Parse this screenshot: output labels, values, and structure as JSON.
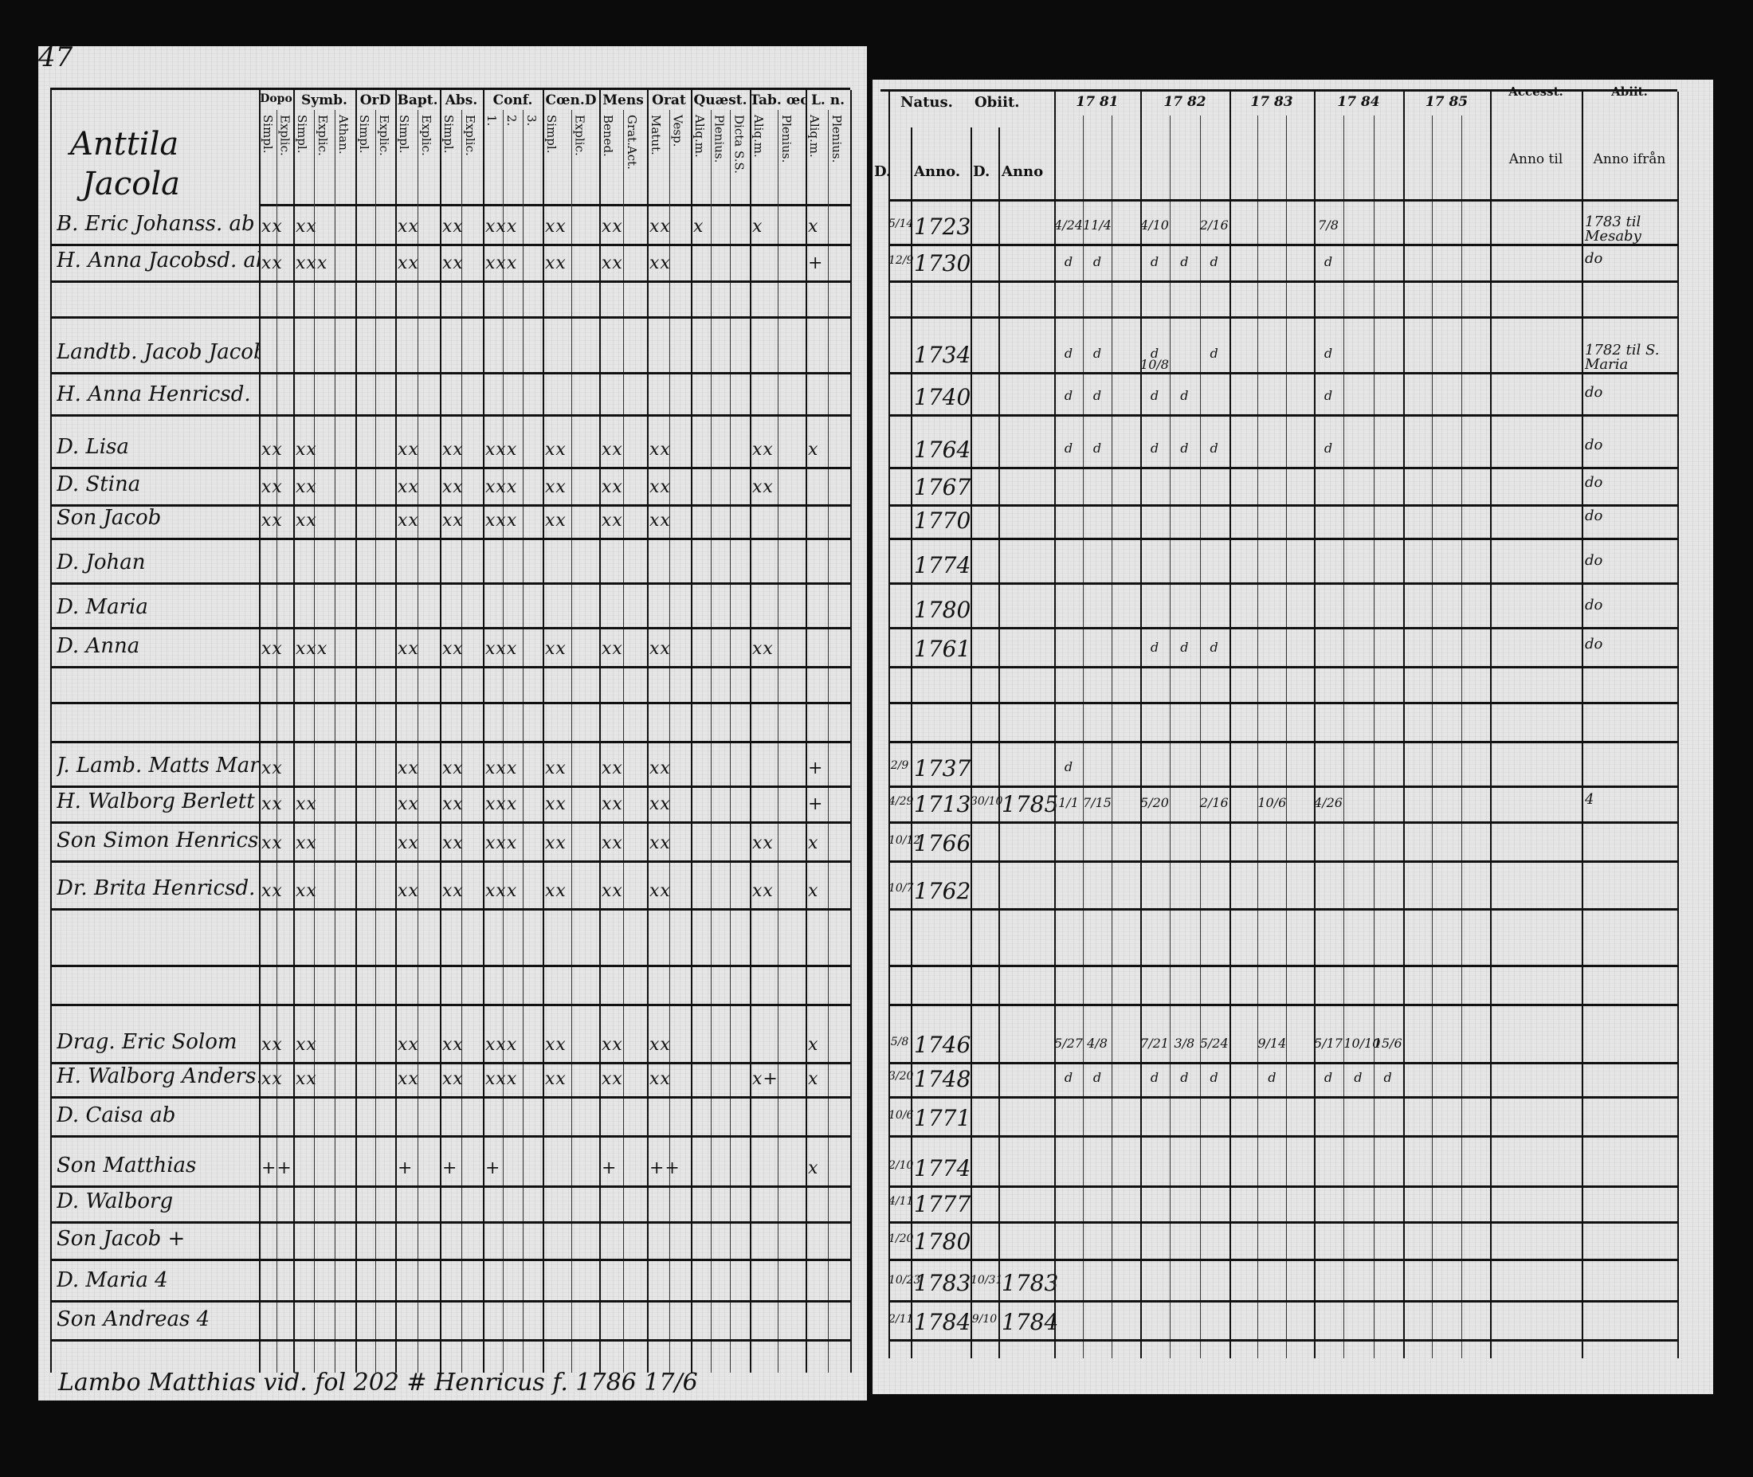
{
  "left_page": {
    "page_number": "47",
    "village": [
      "Anttila",
      "Jacola"
    ],
    "column_groups": [
      {
        "label": "Dopo",
        "subs": [
          "Simpl.",
          "Explic."
        ]
      },
      {
        "label": "Symb.",
        "subs": [
          "Simpl.",
          "Explic.",
          "Athan."
        ]
      },
      {
        "label": "OrD",
        "subs": [
          "Simpl.",
          "Explic."
        ]
      },
      {
        "label": "Bapt.",
        "subs": [
          "Simpl.",
          "Explic."
        ]
      },
      {
        "label": "Abs.",
        "subs": [
          "Simpl.",
          "Explic."
        ]
      },
      {
        "label": "Conf.",
        "subs": [
          "1.",
          "2.",
          "3."
        ]
      },
      {
        "label": "Cœn.D",
        "subs": [
          "Simpl.",
          "Explic."
        ]
      },
      {
        "label": "Mens",
        "subs": [
          "Bened.",
          "Grat.Act."
        ]
      },
      {
        "label": "Orat",
        "subs": [
          "Matut.",
          "Vesp."
        ]
      },
      {
        "label": "Quæst.",
        "subs": [
          "Aliq.m.",
          "Plenius.",
          "Dicta S.S."
        ]
      },
      {
        "label": "Tab. œc.",
        "subs": [
          "Aliq.m.",
          "Plenius."
        ]
      },
      {
        "label": "L. n.",
        "subs": [
          "Aliq.m.",
          "Plenius."
        ]
      }
    ],
    "footer_note": "Lambo Matthias vid. fol 202 # Henricus f. 1786 17/6"
  },
  "right_page": {
    "natus": {
      "label": "Natus.",
      "d": "D.",
      "anno": "Anno."
    },
    "obiit": {
      "label": "Obiit.",
      "d": "D.",
      "anno": "Anno"
    },
    "years": [
      "17 81",
      "17 82",
      "17 83",
      "17 84",
      "17 85"
    ],
    "accessit": {
      "label": "Accesst.",
      "sub": "Anno til"
    },
    "abiit": {
      "label": "Abiit.",
      "sub": "Anno ifrån"
    }
  },
  "rows": [
    {
      "name": "B. Eric Johanss. ab",
      "marks": [
        "xx",
        "xx",
        "",
        "xx",
        "xx",
        "xxx",
        "xx",
        "xx",
        "xx",
        "x",
        "x",
        "x"
      ],
      "natus_d": "5/14",
      "natus_anno": "1723",
      "years": [
        "4/24",
        "11/4",
        "",
        "4/10",
        "",
        "2/16",
        "",
        "",
        "",
        "7/8",
        "",
        ""
      ],
      "accessit": "",
      "abiit": "1783 til Mesaby"
    },
    {
      "name": "H. Anna Jacobsd. ab",
      "marks": [
        "xx",
        "xxx",
        "",
        "xx",
        "xx",
        "xxx",
        "xx",
        "xx",
        "xx",
        "",
        "",
        "+"
      ],
      "natus_d": "12/9",
      "natus_anno": "1730",
      "years": [
        "d",
        "d",
        "",
        "d",
        "d",
        "d",
        "",
        "",
        "",
        "d",
        "",
        ""
      ],
      "accessit": "",
      "abiit": "do"
    },
    {
      "name": "",
      "marks": [],
      "natus_d": "",
      "natus_anno": "",
      "years": [],
      "accessit": "",
      "abiit": ""
    },
    {
      "name": "Landtb. Jacob Jacobss.",
      "marks": [],
      "natus_d": "",
      "natus_anno": "1734",
      "years": [
        "d",
        "d",
        "",
        "d 10/8",
        "",
        "d",
        "",
        "",
        "",
        "d",
        "",
        ""
      ],
      "accessit": "",
      "abiit": "1782 til S. Maria"
    },
    {
      "name": "H. Anna Henricsd.",
      "marks": [],
      "natus_d": "",
      "natus_anno": "1740",
      "years": [
        "d",
        "d",
        "",
        "d",
        "d",
        "",
        "",
        "",
        "",
        "d",
        "",
        ""
      ],
      "accessit": "",
      "abiit": "do"
    },
    {
      "name": "D. Lisa",
      "marks": [
        "xx",
        "xx",
        "",
        "xx",
        "xx",
        "xxx",
        "xx",
        "xx",
        "xx",
        "",
        "xx",
        "x"
      ],
      "natus_d": "",
      "natus_anno": "1764",
      "years": [
        "d",
        "d",
        "",
        "d",
        "d",
        "d",
        "",
        "",
        "",
        "d",
        "",
        ""
      ],
      "accessit": "",
      "abiit": "do"
    },
    {
      "name": "D. Stina",
      "marks": [
        "xx",
        "xx",
        "",
        "xx",
        "xx",
        "xxx",
        "xx",
        "xx",
        "xx",
        "",
        "xx",
        ""
      ],
      "natus_d": "",
      "natus_anno": "1767",
      "years": [],
      "accessit": "",
      "abiit": "do"
    },
    {
      "name": "Son Jacob",
      "marks": [
        "xx",
        "xx",
        "",
        "xx",
        "xx",
        "xxx",
        "xx",
        "xx",
        "xx",
        "",
        "",
        ""
      ],
      "natus_d": "",
      "natus_anno": "1770",
      "years": [],
      "accessit": "",
      "abiit": "do"
    },
    {
      "name": "D. Johan",
      "marks": [],
      "natus_d": "",
      "natus_anno": "1774",
      "years": [],
      "accessit": "",
      "abiit": "do"
    },
    {
      "name": "D. Maria",
      "marks": [],
      "natus_d": "",
      "natus_anno": "1780",
      "years": [],
      "accessit": "",
      "abiit": "do"
    },
    {
      "name": "D. Anna",
      "marks": [
        "xx",
        "xxx",
        "",
        "xx",
        "xx",
        "xxx",
        "xx",
        "xx",
        "xx",
        "",
        "xx",
        ""
      ],
      "natus_d": "",
      "natus_anno": "1761",
      "years": [
        "",
        "",
        "",
        "d",
        "d",
        "d",
        "",
        "",
        "",
        "",
        "",
        ""
      ],
      "accessit": "",
      "abiit": "do"
    },
    {
      "name": "",
      "marks": [],
      "natus_d": "",
      "natus_anno": "",
      "years": [],
      "accessit": "",
      "abiit": ""
    },
    {
      "name": "",
      "marks": [],
      "natus_d": "",
      "natus_anno": "",
      "years": [],
      "accessit": "",
      "abiit": ""
    },
    {
      "name": "J. Lamb. Matts Martin",
      "marks": [
        "xx",
        "",
        "",
        "xx",
        "xx",
        "xxx",
        "xx",
        "xx",
        "xx",
        "",
        "",
        "+"
      ],
      "natus_d": "2/9",
      "natus_anno": "1737",
      "years": [
        "d",
        "",
        "",
        "",
        "",
        "",
        "",
        "",
        "",
        "",
        "",
        ""
      ],
      "accessit": "",
      "abiit": ""
    },
    {
      "name": "H. Walborg Berlett",
      "marks": [
        "xx",
        "xx",
        "",
        "xx",
        "xx",
        "xxx",
        "xx",
        "xx",
        "xx",
        "",
        "",
        "+"
      ],
      "natus_d": "4/29",
      "natus_anno": "1713",
      "obiit_d": "30/10",
      "obiit_anno": "1785",
      "years": [
        "1/1",
        "7/15",
        "",
        "5/20",
        "",
        "2/16",
        "",
        "10/6",
        "",
        "4/26",
        "",
        ""
      ],
      "accessit": "",
      "abiit": "4"
    },
    {
      "name": "Son Simon Henricss.",
      "marks": [
        "xx",
        "xx",
        "",
        "xx",
        "xx",
        "xxx",
        "xx",
        "xx",
        "xx",
        "",
        "xx",
        "x"
      ],
      "natus_d": "10/12",
      "natus_anno": "1766",
      "years": [],
      "accessit": "",
      "abiit": ""
    },
    {
      "name": "Dr. Brita Henricsd.",
      "marks": [
        "xx",
        "xx",
        "",
        "xx",
        "xx",
        "xxx",
        "xx",
        "xx",
        "xx",
        "",
        "xx",
        "x"
      ],
      "natus_d": "10/7",
      "natus_anno": "1762",
      "years": [],
      "accessit": "",
      "abiit": ""
    },
    {
      "name": "",
      "marks": [],
      "natus_d": "",
      "natus_anno": "",
      "years": [],
      "accessit": "",
      "abiit": ""
    },
    {
      "name": "",
      "marks": [],
      "natus_d": "",
      "natus_anno": "",
      "years": [],
      "accessit": "",
      "abiit": ""
    },
    {
      "name": "Drag. Eric Solom",
      "marks": [
        "xx",
        "xx",
        "",
        "xx",
        "xx",
        "xxx",
        "xx",
        "xx",
        "xx",
        "",
        "",
        "x"
      ],
      "natus_d": "5/8",
      "natus_anno": "1746",
      "years": [
        "5/27",
        "4/8",
        "",
        "7/21",
        "3/8",
        "5/24",
        "",
        "9/14",
        "",
        "5/17",
        "10/10",
        "15/6"
      ],
      "accessit": "",
      "abiit": ""
    },
    {
      "name": "H. Walborg Anders.",
      "marks": [
        "xx",
        "xx",
        "",
        "xx",
        "xx",
        "xxx",
        "xx",
        "xx",
        "xx",
        "",
        "x+",
        "x"
      ],
      "natus_d": "3/20",
      "natus_anno": "1748",
      "years": [
        "d",
        "d",
        "",
        "d",
        "d",
        "d",
        "",
        "d",
        "",
        "d",
        "d",
        "d"
      ],
      "accessit": "",
      "abiit": ""
    },
    {
      "name": "D. Caisa ab",
      "marks": [],
      "natus_d": "10/6",
      "natus_anno": "1771",
      "years": [],
      "accessit": "",
      "abiit": ""
    },
    {
      "name": "Son Matthias",
      "marks": [
        "++",
        "",
        "",
        "+",
        "+",
        "+",
        "",
        "+",
        "++",
        "",
        "",
        "x"
      ],
      "natus_d": "2/10",
      "natus_anno": "1774",
      "years": [],
      "accessit": "",
      "abiit": ""
    },
    {
      "name": "D. Walborg",
      "marks": [],
      "natus_d": "4/11",
      "natus_anno": "1777",
      "years": [],
      "accessit": "",
      "abiit": ""
    },
    {
      "name": "Son Jacob +",
      "marks": [],
      "natus_d": "1/20",
      "natus_anno": "1780",
      "years": [],
      "accessit": "",
      "abiit": ""
    },
    {
      "name": "D. Maria 4",
      "marks": [],
      "natus_d": "10/23",
      "natus_anno": "1783",
      "obiit_d": "10/31",
      "obiit_anno": "1783",
      "years": [],
      "accessit": "",
      "abiit": ""
    },
    {
      "name": "Son Andreas 4",
      "marks": [],
      "natus_d": "2/11",
      "natus_anno": "1784",
      "obiit_d": "9/10",
      "obiit_anno": "1784",
      "years": [],
      "accessit": "",
      "abiit": ""
    }
  ]
}
